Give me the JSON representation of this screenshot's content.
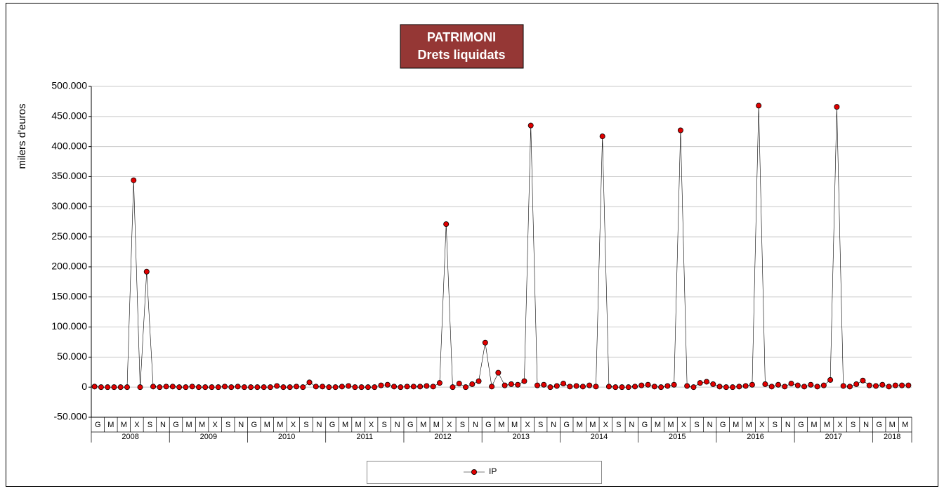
{
  "chart_data": {
    "type": "line",
    "title": "PATRIMONI",
    "subtitle": "Drets liquidats",
    "y_label": "milers d'euros",
    "categories": [
      "G",
      null,
      "M",
      null,
      "M",
      null,
      "X",
      null,
      "S",
      null,
      "N",
      null,
      "G",
      null,
      "M",
      null,
      "M",
      null,
      "X",
      null,
      "S",
      null,
      "N",
      null,
      "G",
      null,
      "M",
      null,
      "M",
      null,
      "X",
      null,
      "S",
      null,
      "N",
      null,
      "G",
      null,
      "M",
      null,
      "M",
      null,
      "X",
      null,
      "S",
      null,
      "N",
      null,
      "G",
      null,
      "M",
      null,
      "M",
      null,
      "X",
      null,
      "S",
      null,
      "N",
      null,
      "G",
      null,
      "M",
      null,
      "M",
      null,
      "X",
      null,
      "S",
      null,
      "N",
      null,
      "G",
      null,
      "M",
      null,
      "M",
      null,
      "X",
      null,
      "S",
      null,
      "N",
      null,
      "G",
      null,
      "M",
      null,
      "M",
      null,
      "X",
      null,
      "S",
      null,
      "N",
      null,
      "G",
      null,
      "M",
      null,
      "M",
      null,
      "X",
      null,
      "S",
      null,
      "N",
      null,
      "G",
      null,
      "M",
      null,
      "M",
      null,
      "X",
      null,
      "S",
      null,
      "N",
      null,
      "G",
      null,
      "M",
      null,
      "M",
      null
    ],
    "years": [
      "2008",
      "2009",
      "2010",
      "2011",
      "2012",
      "2013",
      "2014",
      "2015",
      "2016",
      "2017",
      "2018"
    ],
    "series": [
      {
        "name": "IP",
        "color": "#e00000",
        "values": [
          1000,
          0,
          0,
          0,
          0,
          0,
          344000,
          0,
          192000,
          1000,
          0,
          1000,
          1000,
          0,
          0,
          1000,
          0,
          0,
          0,
          0,
          1000,
          0,
          1000,
          0,
          0,
          0,
          0,
          0,
          2000,
          0,
          0,
          1000,
          0,
          8000,
          1000,
          1000,
          0,
          0,
          1000,
          2000,
          0,
          0,
          0,
          0,
          3000,
          4000,
          1000,
          0,
          1000,
          1000,
          1000,
          2000,
          1000,
          7000,
          271000,
          0,
          6000,
          0,
          5000,
          10000,
          74000,
          1000,
          24000,
          3000,
          5000,
          4000,
          10000,
          435000,
          3000,
          4000,
          0,
          2000,
          6000,
          1000,
          2000,
          1000,
          3000,
          1000,
          417000,
          1000,
          0,
          0,
          0,
          1000,
          3000,
          4000,
          1000,
          0,
          2000,
          4000,
          427000,
          2000,
          0,
          7000,
          9000,
          5000,
          1000,
          0,
          0,
          1000,
          2000,
          4000,
          468000,
          5000,
          1000,
          4000,
          1000,
          6000,
          3000,
          1000,
          4000,
          1000,
          3000,
          12000,
          466000,
          2000,
          1000,
          5000,
          11000,
          3000,
          2000,
          4000,
          1000,
          3000,
          3000,
          3000
        ]
      }
    ],
    "ylim": [
      -50000,
      500000
    ],
    "yticks": [
      {
        "value": -50000,
        "label": "-50.000"
      },
      0,
      {
        "value": 50000,
        "label": "50.000"
      },
      {
        "value": 100000,
        "label": "100.000"
      },
      {
        "value": 150000,
        "label": "150.000"
      },
      {
        "value": 200000,
        "label": "200.000"
      },
      {
        "value": 250000,
        "label": "250.000"
      },
      {
        "value": 300000,
        "label": "300.000"
      },
      {
        "value": 350000,
        "label": "350.000"
      },
      {
        "value": 400000,
        "label": "400.000"
      },
      {
        "value": 450000,
        "label": "450.000"
      },
      {
        "value": 500000,
        "label": "500.000"
      }
    ],
    "grid": true
  }
}
